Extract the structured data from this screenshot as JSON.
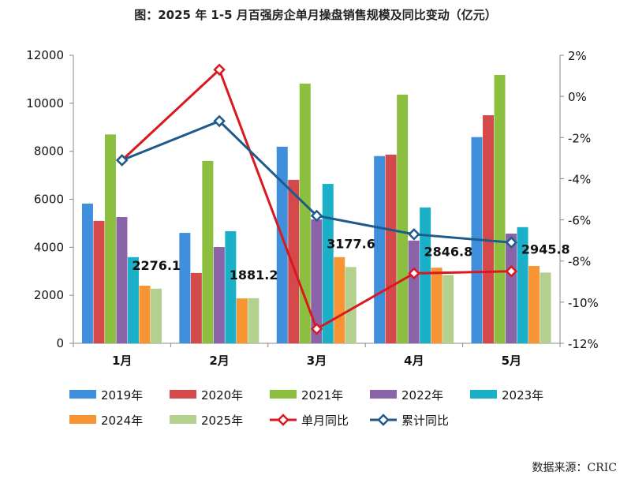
{
  "chart_data": {
    "type": "bar",
    "title": "图：2025 年 1-5 月百强房企单月操盘销售规模及同比变动（亿元）",
    "source": "数据来源：CRIC",
    "categories": [
      "1月",
      "2月",
      "3月",
      "4月",
      "5月"
    ],
    "y_left": {
      "range": [
        0,
        12000
      ],
      "ticks": [
        "0",
        "2000",
        "4000",
        "6000",
        "8000",
        "10000",
        "12000"
      ]
    },
    "y_right": {
      "range": [
        -12,
        2
      ],
      "unit": "%",
      "ticks": [
        "-12%",
        "-10%",
        "-8%",
        "-6%",
        "-4%",
        "-2%",
        "0%",
        "2%"
      ]
    },
    "grid": false,
    "legend_position": "bottom",
    "series": [
      {
        "name": "2019年",
        "type": "bar",
        "color": "#3f8fdc",
        "values": [
          5820,
          4600,
          8190,
          7800,
          8590
        ]
      },
      {
        "name": "2020年",
        "type": "bar",
        "color": "#d44a4a",
        "values": [
          5100,
          2930,
          6810,
          7860,
          9500
        ]
      },
      {
        "name": "2021年",
        "type": "bar",
        "color": "#8cbf3f",
        "values": [
          8700,
          7600,
          10820,
          10360,
          11180
        ]
      },
      {
        "name": "2022年",
        "type": "bar",
        "color": "#8a63a8",
        "values": [
          5260,
          4010,
          5160,
          4280,
          4570
        ]
      },
      {
        "name": "2023年",
        "type": "bar",
        "color": "#1ab0c8",
        "values": [
          3590,
          4670,
          6640,
          5660,
          4840
        ]
      },
      {
        "name": "2024年",
        "type": "bar",
        "color": "#f79433",
        "values": [
          2400,
          1870,
          3590,
          3150,
          3220
        ]
      },
      {
        "name": "2025年",
        "type": "bar",
        "color": "#b4d08e",
        "values": [
          2276.1,
          1881.2,
          3177.6,
          2846.8,
          2945.8
        ],
        "data_labels": [
          "2276.1",
          "1881.2",
          "3177.6",
          "2846.8",
          "2945.8"
        ]
      },
      {
        "name": "单月同比",
        "type": "line",
        "axis": "right",
        "color": "#d9181f",
        "values": [
          -3.1,
          1.3,
          -11.3,
          -8.6,
          -8.5
        ]
      },
      {
        "name": "累计同比",
        "type": "line",
        "axis": "right",
        "color": "#1f5a8c",
        "values": [
          -3.1,
          -1.2,
          -5.8,
          -6.7,
          -7.1
        ]
      }
    ]
  }
}
